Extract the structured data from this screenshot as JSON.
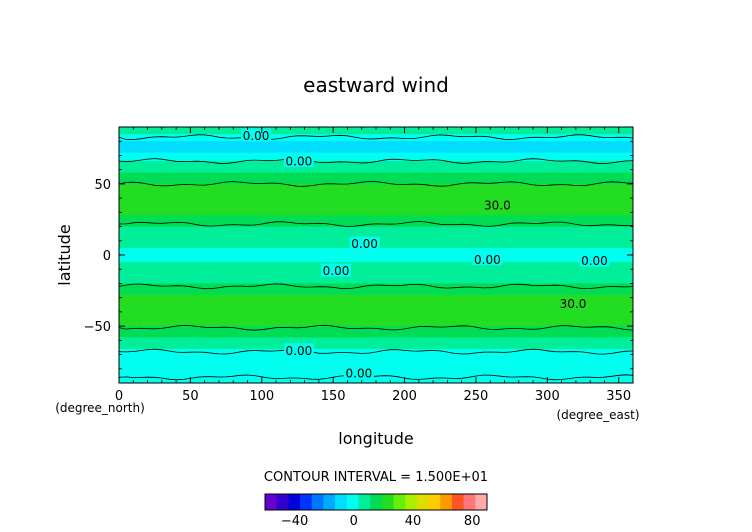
{
  "chart_data": {
    "type": "heatmap",
    "title": "eastward wind",
    "xlabel": "longitude",
    "ylabel": "latitude",
    "x_unit": "(degree_east)",
    "y_unit": "(degree_north)",
    "xlim": [
      0,
      360
    ],
    "ylim": [
      -90,
      90
    ],
    "x_ticks": [
      0,
      50,
      100,
      150,
      200,
      250,
      300,
      350
    ],
    "y_ticks": [
      50,
      0,
      -50
    ],
    "contour_interval_text": "CONTOUR INTERVAL = 1.500E+01",
    "contour_interval": 15,
    "contour_labels": [
      {
        "text": "0.00",
        "lon": 96,
        "lat": 84
      },
      {
        "text": "0.00",
        "lon": 126,
        "lat": 66
      },
      {
        "text": "0.00",
        "lon": 172,
        "lat": 8
      },
      {
        "text": "0.00",
        "lon": 258,
        "lat": -3
      },
      {
        "text": "0.00",
        "lon": 152,
        "lat": -11
      },
      {
        "text": "0.00",
        "lon": 333,
        "lat": -4
      },
      {
        "text": "0.00",
        "lon": 126,
        "lat": -67
      },
      {
        "text": "0.00",
        "lon": 168,
        "lat": -83
      },
      {
        "text": "30.0",
        "lon": 265,
        "lat": 35
      },
      {
        "text": "30.0",
        "lon": 318,
        "lat": -34
      }
    ],
    "zonal_profile": [
      {
        "lat": 90,
        "u": 6
      },
      {
        "lat": 85,
        "u": 3
      },
      {
        "lat": 80,
        "u": -4
      },
      {
        "lat": 72,
        "u": -6
      },
      {
        "lat": 66,
        "u": 0
      },
      {
        "lat": 58,
        "u": 8
      },
      {
        "lat": 50,
        "u": 15
      },
      {
        "lat": 42,
        "u": 24
      },
      {
        "lat": 35,
        "u": 28
      },
      {
        "lat": 28,
        "u": 22
      },
      {
        "lat": 20,
        "u": 13
      },
      {
        "lat": 12,
        "u": 7
      },
      {
        "lat": 5,
        "u": 3
      },
      {
        "lat": 0,
        "u": 2
      },
      {
        "lat": -5,
        "u": 4
      },
      {
        "lat": -12,
        "u": 7
      },
      {
        "lat": -20,
        "u": 13
      },
      {
        "lat": -28,
        "u": 21
      },
      {
        "lat": -35,
        "u": 27
      },
      {
        "lat": -42,
        "u": 23
      },
      {
        "lat": -50,
        "u": 16
      },
      {
        "lat": -58,
        "u": 9
      },
      {
        "lat": -66,
        "u": 2
      },
      {
        "lat": -72,
        "u": -4
      },
      {
        "lat": -80,
        "u": -5
      },
      {
        "lat": -86,
        "u": 0
      },
      {
        "lat": -90,
        "u": 4
      }
    ],
    "colorbar": {
      "tick_labels": [
        "-40",
        "0",
        "40",
        "80"
      ],
      "tick_values": [
        -40,
        0,
        40,
        80
      ],
      "range": [
        -60,
        90
      ],
      "colors": [
        "#6600cc",
        "#3300cc",
        "#0000dd",
        "#0033ff",
        "#0077ff",
        "#00aaff",
        "#00ddff",
        "#00ffee",
        "#00ee99",
        "#00dd55",
        "#22dd22",
        "#66ee11",
        "#aaee00",
        "#dddd00",
        "#ffcc00",
        "#ff9900",
        "#ff5522",
        "#ff7777",
        "#ffaaaa"
      ]
    }
  }
}
